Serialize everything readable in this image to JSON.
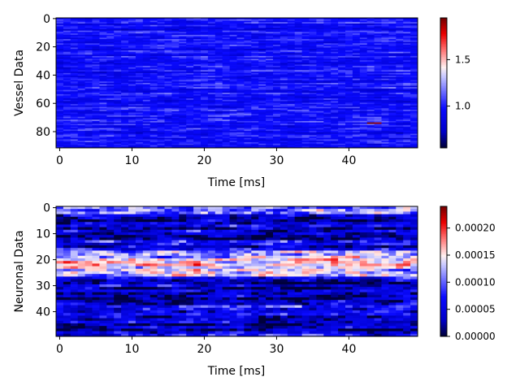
{
  "chart_data": [
    {
      "type": "heatmap",
      "title": "",
      "xlabel": "Time [ms]",
      "ylabel": "Vessel Data",
      "rows": 92,
      "cols": 50,
      "xlim": [
        -0.5,
        49.5
      ],
      "ylim": [
        91.5,
        -0.5
      ],
      "x_ticks": [
        0,
        10,
        20,
        30,
        40
      ],
      "y_ticks": [
        0,
        20,
        40,
        60,
        80
      ],
      "colormap": "seismic-upper",
      "vmin": 0.55,
      "vmax": 1.95,
      "colorbar_ticks": [
        {
          "value": 1.0,
          "label": "1.0"
        },
        {
          "value": 1.5,
          "label": "1.5"
        }
      ],
      "seed": 7,
      "base": 0.95,
      "row_amp": 0.08,
      "noise_amp": 0.12,
      "row_profile": [],
      "spikes": [
        {
          "row": 74,
          "col": 43,
          "value": 1.95
        },
        {
          "row": 74,
          "col": 44,
          "value": 1.9
        }
      ]
    },
    {
      "type": "heatmap",
      "title": "",
      "xlabel": "Time [ms]",
      "ylabel": "Neuronal Data",
      "rows": 50,
      "cols": 50,
      "xlim": [
        -0.5,
        49.5
      ],
      "ylim": [
        49.5,
        -0.5
      ],
      "x_ticks": [
        0,
        10,
        20,
        30,
        40
      ],
      "y_ticks": [
        0,
        10,
        20,
        30,
        40
      ],
      "colormap": "seismic-upper",
      "vmin": 0.0,
      "vmax": 0.00024,
      "colorbar_ticks": [
        {
          "value": 0.0,
          "label": "0.00000"
        },
        {
          "value": 5e-05,
          "label": "0.00005"
        },
        {
          "value": 0.0001,
          "label": "0.00010"
        },
        {
          "value": 0.00015,
          "label": "0.00015"
        },
        {
          "value": 0.0002,
          "label": "0.00020"
        }
      ],
      "seed": 21,
      "base": 4e-05,
      "row_amp": 3e-05,
      "noise_amp": 4e-05,
      "row_profile": [
        {
          "from": 0,
          "to": 2,
          "level": 0.00011
        },
        {
          "from": 17,
          "to": 19,
          "level": 0.00012
        },
        {
          "from": 20,
          "to": 22,
          "level": 0.00016
        },
        {
          "from": 23,
          "to": 26,
          "level": 0.00013
        }
      ],
      "spikes": []
    }
  ]
}
